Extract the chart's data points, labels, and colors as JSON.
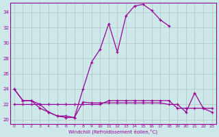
{
  "xlabel": "Windchill (Refroidissement éolien,°C)",
  "bg_color": "#cce8e8",
  "grid_color": "#b0c4c4",
  "line_color": "#990099",
  "xlim": [
    -0.5,
    23.5
  ],
  "ylim": [
    19.5,
    35.2
  ],
  "xticks": [
    0,
    1,
    2,
    3,
    4,
    5,
    6,
    7,
    8,
    9,
    10,
    11,
    12,
    13,
    14,
    15,
    16,
    17,
    18,
    19,
    20,
    21,
    22,
    23
  ],
  "yticks": [
    20,
    22,
    24,
    26,
    28,
    30,
    32,
    34
  ],
  "series1_x": [
    0,
    1,
    2,
    3,
    4,
    5,
    6,
    7,
    8,
    9,
    10,
    11,
    12,
    13,
    14,
    15,
    16,
    17,
    18
  ],
  "series1_y": [
    24.0,
    22.5,
    22.5,
    22.0,
    21.0,
    20.5,
    20.3,
    20.3,
    24.0,
    27.5,
    29.2,
    32.5,
    28.8,
    33.5,
    34.8,
    35.0,
    34.2,
    33.0,
    32.2
  ],
  "series2_x": [
    0,
    1,
    2,
    3,
    4,
    5,
    6,
    7,
    8,
    9,
    10,
    11,
    12,
    13,
    14,
    15,
    16,
    17,
    18,
    19,
    20,
    21,
    22,
    23
  ],
  "series2_y": [
    22.0,
    22.0,
    22.0,
    22.0,
    22.0,
    22.0,
    22.0,
    22.0,
    22.0,
    22.0,
    22.0,
    22.5,
    22.5,
    22.5,
    22.5,
    22.5,
    22.5,
    22.5,
    22.5,
    21.5,
    21.5,
    21.5,
    21.5,
    21.5
  ],
  "series3_x": [
    0,
    1,
    2,
    3,
    4,
    5,
    6,
    7,
    8,
    9,
    10,
    11,
    12,
    13,
    14,
    15,
    16,
    17,
    18,
    19,
    20,
    21,
    22,
    23
  ],
  "series3_y": [
    24.0,
    22.5,
    22.5,
    21.5,
    21.0,
    20.5,
    20.5,
    20.3,
    22.3,
    22.2,
    22.2,
    22.2,
    22.2,
    22.2,
    22.2,
    22.2,
    22.2,
    22.2,
    22.0,
    22.0,
    21.0,
    23.5,
    21.5,
    21.0
  ]
}
